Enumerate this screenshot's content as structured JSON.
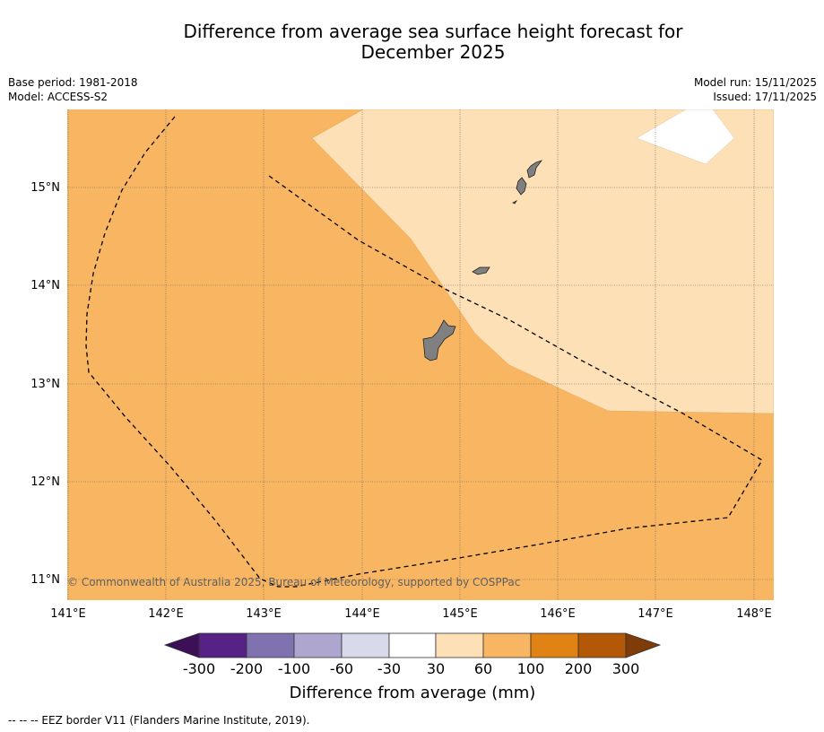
{
  "title": {
    "line1": "Difference from average sea surface height forecast for",
    "line2": "December 2025"
  },
  "meta": {
    "base_period": "Base period: 1981-2018",
    "model": "Model: ACCESS-S2",
    "model_run": "Model run: 15/11/2025",
    "issued": "Issued: 17/11/2025"
  },
  "map": {
    "lat_labels": [
      "15°N",
      "14°N",
      "13°N",
      "12°N",
      "11°N"
    ],
    "lon_labels": [
      "141°E",
      "142°E",
      "143°E",
      "144°E",
      "145°E",
      "146°E",
      "147°E",
      "148°E"
    ],
    "copyright": "© Commonwealth of Australia 2025, Bureau of Meteorology, supported by COSPPac",
    "colors": {
      "band_60_100": "#f9b662",
      "band_30_60": "#fde0b6",
      "band_neutral": "#ffffff",
      "land": "#808080"
    }
  },
  "colorbar": {
    "colors": [
      "#3d0f57",
      "#562286",
      "#8072b0",
      "#afa6d0",
      "#d9d9ec",
      "#ffffff",
      "#fde0b6",
      "#f9b662",
      "#e08214",
      "#b35806",
      "#7f3b08"
    ],
    "tick_labels": [
      "-300",
      "-200",
      "-100",
      "-60",
      "-30",
      "30",
      "60",
      "100",
      "200",
      "300"
    ],
    "label": "Difference from average (mm)"
  },
  "footer": {
    "legend": "--  --  -- EEZ border V11 (Flanders Marine Institute, 2019)."
  }
}
